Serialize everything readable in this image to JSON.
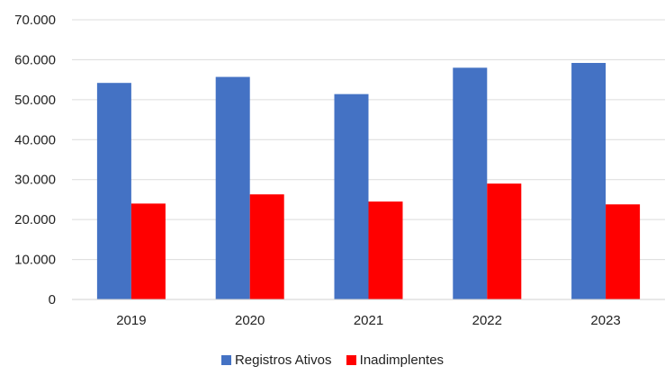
{
  "chart_data": {
    "type": "bar",
    "categories": [
      "2019",
      "2020",
      "2021",
      "2022",
      "2023"
    ],
    "series": [
      {
        "name": "Registros Ativos",
        "color": "#4472C4",
        "values": [
          54200,
          55700,
          51400,
          58000,
          59200
        ]
      },
      {
        "name": "Inadimplentes",
        "color": "#FF0000",
        "values": [
          24000,
          26300,
          24500,
          29000,
          23800
        ]
      }
    ],
    "yticks": [
      "0",
      "10.000",
      "20.000",
      "30.000",
      "40.000",
      "50.000",
      "60.000",
      "70.000"
    ],
    "ylim": [
      0,
      70000
    ],
    "grid": true,
    "legend_position": "bottom",
    "title": "",
    "xlabel": "",
    "ylabel": ""
  }
}
